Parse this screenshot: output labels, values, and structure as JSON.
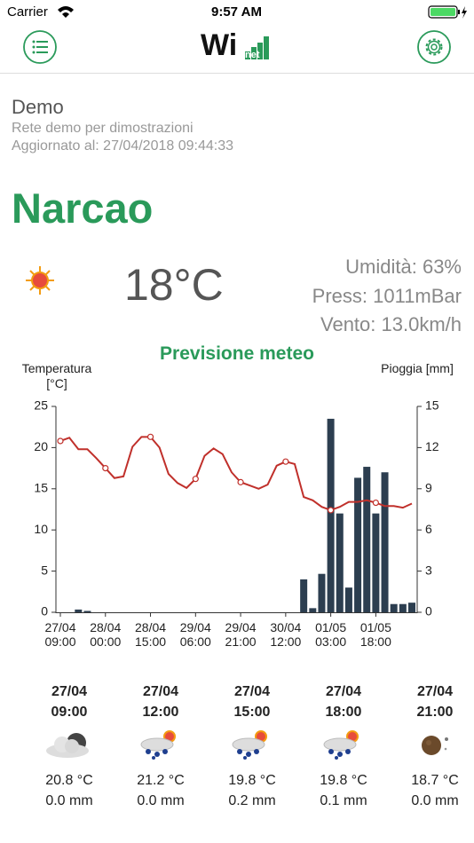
{
  "status_bar": {
    "carrier": "Carrier",
    "time": "9:57 AM"
  },
  "header": {
    "logo": "Wi",
    "logo_sub": "net"
  },
  "network": {
    "name": "Demo",
    "description": "Rete demo per dimostrazioni",
    "updated": "Aggiornato al: 27/04/2018 09:44:33"
  },
  "station": {
    "name": "Narcao",
    "temperature": "18°C",
    "humidity": "Umidità: 63%",
    "pressure": "Press: 1011mBar",
    "wind": "Vento: 13.0km/h"
  },
  "chart_data": {
    "type": "combo",
    "title": "Previsione meteo",
    "ylabel": "Temperatura [°C]",
    "y2label": "Pioggia [mm]",
    "categories": [
      "27/04 09:00",
      null,
      null,
      null,
      null,
      "28/04 00:00",
      null,
      null,
      null,
      null,
      "28/04 15:00",
      null,
      null,
      null,
      null,
      "29/04 06:00",
      null,
      null,
      null,
      null,
      "29/04 21:00",
      null,
      null,
      null,
      null,
      "30/04 12:00",
      null,
      null,
      null,
      null,
      "01/05 03:00",
      null,
      null,
      null,
      null,
      "01/05 18:00",
      null,
      null,
      null,
      null
    ],
    "series": [
      {
        "type": "bar",
        "axis": "y2",
        "color": "#2c3e50",
        "values": [
          0,
          0,
          0.2,
          0.1,
          0,
          0,
          0,
          0,
          0,
          0,
          0,
          0,
          0,
          0,
          0,
          0,
          0,
          0,
          0,
          0,
          0,
          0,
          0,
          0,
          0,
          0,
          0,
          2.4,
          0.3,
          2.8,
          14.1,
          7.2,
          1.8,
          9.8,
          10.6,
          7.2,
          10.2,
          0.6,
          0.6,
          0.7
        ]
      },
      {
        "type": "line",
        "color": "#c0302b",
        "values": [
          20.8,
          21.2,
          19.8,
          19.8,
          18.7,
          17.5,
          16.3,
          16.5,
          20.1,
          21.3,
          21.3,
          20.0,
          16.8,
          15.7,
          15.1,
          16.2,
          19.0,
          19.9,
          19.2,
          17.0,
          15.8,
          15.4,
          15.0,
          15.5,
          17.8,
          18.3,
          18.0,
          14.0,
          13.6,
          12.8,
          12.4,
          12.8,
          13.4,
          13.4,
          13.6,
          13.3,
          12.9,
          12.9,
          12.7,
          13.2
        ]
      }
    ],
    "ylim": [
      0,
      25
    ],
    "yticks": [
      0,
      5,
      10,
      15,
      20,
      25
    ],
    "y2lim": [
      0,
      15
    ],
    "y2ticks": [
      0,
      3,
      6,
      9,
      12,
      15
    ],
    "grid": false
  },
  "forecast": [
    {
      "date": "27/04",
      "time": "09:00",
      "temperature": "20.8 °C",
      "rain": "0.0 mm"
    },
    {
      "date": "27/04",
      "time": "12:00",
      "temperature": "21.2 °C",
      "rain": "0.0 mm"
    },
    {
      "date": "27/04",
      "time": "15:00",
      "temperature": "19.8 °C",
      "rain": "0.2 mm"
    },
    {
      "date": "27/04",
      "time": "18:00",
      "temperature": "19.8 °C",
      "rain": "0.1 mm"
    },
    {
      "date": "27/04",
      "time": "21:00",
      "temperature": "18.7 °C",
      "rain": "0.0 mm"
    }
  ]
}
